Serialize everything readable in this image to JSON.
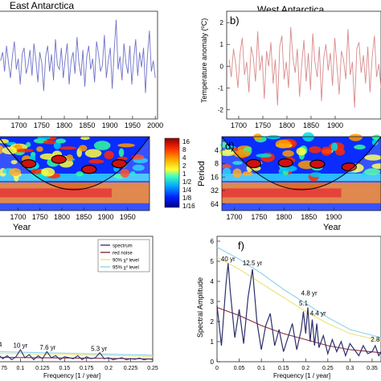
{
  "chart_data": [
    {
      "id": "a",
      "type": "line",
      "panel_label": "",
      "title": "East Antarctica",
      "xlabel": "",
      "ylabel": "",
      "xlim": [
        1655,
        2005
      ],
      "ylim": [
        -2.2,
        2.2
      ],
      "x_ticks": [
        "1700",
        "1750",
        "1800",
        "1850",
        "1900",
        "1950",
        "2000"
      ],
      "y_ticks": [],
      "series": [
        {
          "color": "#6f73c9",
          "x_start": 1660,
          "x_end": 2000,
          "values": [
            0.2,
            0.6,
            -0.3,
            0.9,
            0.1,
            -0.6,
            0.4,
            1.1,
            -0.2,
            0.3,
            -0.9,
            0.5,
            0.8,
            -0.4,
            0.0,
            0.7,
            -0.5,
            1.0,
            0.2,
            -0.8,
            0.6,
            0.1,
            -1.2,
            0.4,
            0.9,
            -0.3,
            0.5,
            -0.7,
            1.2,
            0.0,
            -0.2,
            0.8,
            -0.6,
            0.3,
            1.0,
            -0.9,
            0.2,
            0.6,
            -0.4,
            1.3,
            0.1,
            -0.5,
            0.7,
            -1.0,
            0.4,
            0.9,
            -0.2,
            0.3,
            -0.8,
            1.1,
            0.5,
            -0.3,
            0.0,
            1.4,
            -0.6,
            0.2,
            0.8,
            -1.1,
            0.6,
            2.1,
            -0.2,
            0.4,
            -0.7,
            1.0,
            0.1,
            -0.4,
            0.9,
            -0.9,
            0.3,
            1.2,
            -0.5,
            0.6,
            -0.1,
            0.8,
            -1.3,
            0.4,
            1.6,
            -0.3,
            0.2,
            -0.6
          ]
        }
      ]
    },
    {
      "id": "b",
      "type": "line",
      "panel_label": "b)",
      "title": "West Antarctica",
      "xlabel": "",
      "ylabel": "Temperature anomaly (ºC)",
      "xlim": [
        1675,
        1995
      ],
      "ylim": [
        -2.2,
        2.3
      ],
      "x_ticks": [
        "1700",
        "1750",
        "1800",
        "1850",
        "1900"
      ],
      "y_ticks": [
        "-2",
        "-1",
        "0",
        "1",
        "2"
      ],
      "series": [
        {
          "color": "#d98a8a",
          "x_start": 1680,
          "x_end": 1995,
          "values": [
            0.3,
            -0.5,
            0.8,
            0.1,
            -1.0,
            0.6,
            1.3,
            -0.4,
            0.2,
            -1.2,
            0.9,
            0.4,
            -0.7,
            1.6,
            -0.2,
            0.5,
            -1.5,
            0.7,
            0.0,
            1.1,
            -0.8,
            0.3,
            -1.8,
            0.9,
            1.4,
            -0.6,
            0.2,
            -1.0,
            1.8,
            0.4,
            -0.3,
            0.8,
            -1.4,
            0.1,
            1.2,
            -0.7,
            0.6,
            -1.1,
            1.5,
            0.2,
            -0.5,
            0.9,
            -1.6,
            0.4,
            1.0,
            -0.2,
            0.6,
            -0.9,
            1.3,
            0.0,
            -1.3,
            0.7,
            0.3,
            -0.6,
            1.7,
            -0.4,
            0.2,
            -1.9,
            0.8,
            1.1,
            -0.3,
            0.5,
            -0.8,
            0.9,
            -1.2,
            0.4,
            1.4,
            -0.5,
            0.1,
            -1.0
          ]
        }
      ]
    },
    {
      "id": "c",
      "type": "heatmap",
      "panel_label": "",
      "title": "",
      "xlabel": "Year",
      "ylabel": "",
      "xlim": [
        1655,
        2000
      ],
      "ylim": [
        2,
        90
      ],
      "x_ticks": [
        "1700",
        "1750",
        "1800",
        "1850",
        "1900",
        "1950"
      ],
      "colorbar": {
        "labels": [
          "16",
          "8",
          "4",
          "2",
          "1",
          "1/2",
          "1/4",
          "1/8",
          "1/16"
        ]
      }
    },
    {
      "id": "d",
      "type": "heatmap",
      "panel_label": "d)",
      "title": "",
      "xlabel": "Year",
      "ylabel": "Period",
      "xlim": [
        1675,
        1995
      ],
      "ylim": [
        2,
        90
      ],
      "x_ticks": [
        "1700",
        "1750",
        "1800",
        "1850",
        "1900"
      ],
      "y_ticks": [
        "4",
        "8",
        "16",
        "32",
        "64"
      ]
    },
    {
      "id": "e",
      "type": "line",
      "panel_label": "",
      "title": "",
      "xlabel": "Frequency [1 / year]",
      "ylabel": "",
      "xlim": [
        0.075,
        0.25
      ],
      "x_ticks": [
        "75",
        "0.1",
        "0.125",
        "0.15",
        "0.175",
        "0.2",
        "0.225",
        "0.25"
      ],
      "legend": {
        "placement": "top-right",
        "entries": [
          {
            "label": "spectrum",
            "color": "#3b3b7a"
          },
          {
            "label": "red noise",
            "color": "#8a2a3a"
          },
          {
            "label": "90% χ² level",
            "color": "#e9e47a"
          },
          {
            "label": "95% χ² level",
            "color": "#8fd3ea"
          }
        ]
      },
      "annotations": [
        {
          "text": "4",
          "x": 0.077,
          "y": 0.75
        },
        {
          "text": "10 yr",
          "x": 0.1,
          "y": 0.7
        },
        {
          "text": "7.6 yr",
          "x": 0.131,
          "y": 0.6
        },
        {
          "text": "5.3 yr",
          "x": 0.189,
          "y": 0.55
        }
      ],
      "series": [
        {
          "name": "spectrum",
          "color": "#3b3b7a",
          "x": [
            0.075,
            0.08,
            0.085,
            0.09,
            0.095,
            0.1,
            0.105,
            0.11,
            0.115,
            0.12,
            0.125,
            0.13,
            0.135,
            0.14,
            0.145,
            0.15,
            0.155,
            0.16,
            0.165,
            0.17,
            0.175,
            0.18,
            0.185,
            0.19,
            0.195,
            0.2,
            0.205,
            0.21,
            0.215,
            0.22,
            0.225,
            0.23,
            0.235,
            0.24,
            0.245,
            0.25
          ],
          "values": [
            0.35,
            0.15,
            0.3,
            0.1,
            0.25,
            0.6,
            0.2,
            0.35,
            0.1,
            0.3,
            0.15,
            0.5,
            0.2,
            0.3,
            0.1,
            0.25,
            0.2,
            0.15,
            0.3,
            0.1,
            0.25,
            0.15,
            0.2,
            0.45,
            0.15,
            0.2,
            0.1,
            0.15,
            0.2,
            0.1,
            0.15,
            0.12,
            0.18,
            0.1,
            0.14,
            0.12
          ]
        },
        {
          "name": "red noise",
          "color": "#8a2a3a",
          "x": [
            0.075,
            0.25
          ],
          "values": [
            0.22,
            0.14
          ]
        },
        {
          "name": "90% χ² level",
          "color": "#e9e47a",
          "x": [
            0.075,
            0.25
          ],
          "values": [
            0.42,
            0.27
          ]
        },
        {
          "name": "95% χ² level",
          "color": "#8fd3ea",
          "x": [
            0.075,
            0.25
          ],
          "values": [
            0.5,
            0.33
          ]
        }
      ],
      "ylim": [
        0,
        6
      ]
    },
    {
      "id": "f",
      "type": "line",
      "panel_label": "f)",
      "title": "",
      "xlabel": "Frequency [1 / year]",
      "ylabel": "Spectral Amplitude",
      "xlim": [
        0,
        0.37
      ],
      "ylim": [
        0,
        6
      ],
      "x_ticks": [
        "0",
        "0.05",
        "0.1",
        "0.15",
        "0.2",
        "0.25",
        "0.3",
        "0.35"
      ],
      "y_ticks": [
        "0",
        "1",
        "2",
        "3",
        "4",
        "5",
        "6"
      ],
      "annotations": [
        {
          "text": "40 yr",
          "x": 0.025,
          "y": 5.0
        },
        {
          "text": "12.5 yr",
          "x": 0.08,
          "y": 4.8
        },
        {
          "text": "4.8 yr",
          "x": 0.208,
          "y": 3.3
        },
        {
          "text": "5.1",
          "x": 0.195,
          "y": 2.8
        },
        {
          "text": "4.4 yr",
          "x": 0.228,
          "y": 2.3
        },
        {
          "text": "2.8",
          "x": 0.357,
          "y": 1.0
        }
      ],
      "series": [
        {
          "name": "spectrum",
          "color": "#2e2f6a",
          "x": [
            0,
            0.01,
            0.02,
            0.025,
            0.03,
            0.04,
            0.05,
            0.06,
            0.07,
            0.08,
            0.09,
            0.1,
            0.11,
            0.12,
            0.13,
            0.14,
            0.15,
            0.16,
            0.17,
            0.18,
            0.19,
            0.195,
            0.2,
            0.205,
            0.21,
            0.215,
            0.22,
            0.225,
            0.23,
            0.24,
            0.25,
            0.26,
            0.27,
            0.28,
            0.29,
            0.3,
            0.31,
            0.32,
            0.33,
            0.34,
            0.35,
            0.357,
            0.365,
            0.37
          ],
          "values": [
            2.8,
            0.8,
            3.8,
            4.9,
            3.5,
            1.2,
            2.6,
            0.9,
            3.2,
            4.6,
            2.0,
            0.6,
            1.8,
            2.4,
            0.8,
            1.6,
            0.5,
            1.2,
            1.9,
            0.6,
            1.6,
            2.5,
            1.4,
            2.7,
            1.0,
            2.1,
            0.8,
            1.9,
            0.7,
            1.3,
            0.4,
            1.1,
            0.5,
            1.0,
            0.3,
            0.9,
            0.6,
            0.3,
            0.8,
            0.4,
            0.5,
            0.8,
            0.3,
            0.5
          ]
        },
        {
          "name": "red noise",
          "color": "#8a2a3a",
          "x": [
            0,
            0.05,
            0.1,
            0.15,
            0.2,
            0.25,
            0.3,
            0.37
          ],
          "values": [
            2.7,
            2.3,
            1.8,
            1.4,
            1.1,
            0.8,
            0.6,
            0.45
          ]
        },
        {
          "name": "90% χ² level",
          "color": "#e9e47a",
          "x": [
            0,
            0.05,
            0.1,
            0.15,
            0.2,
            0.25,
            0.3,
            0.37
          ],
          "values": [
            5.2,
            4.6,
            3.9,
            3.2,
            2.5,
            1.9,
            1.4,
            1.05
          ]
        },
        {
          "name": "95% χ² level",
          "color": "#8fd3ea",
          "x": [
            0,
            0.05,
            0.1,
            0.15,
            0.2,
            0.25,
            0.3,
            0.37
          ],
          "values": [
            5.7,
            5.1,
            4.4,
            3.6,
            2.9,
            2.2,
            1.6,
            1.2
          ]
        }
      ]
    }
  ]
}
